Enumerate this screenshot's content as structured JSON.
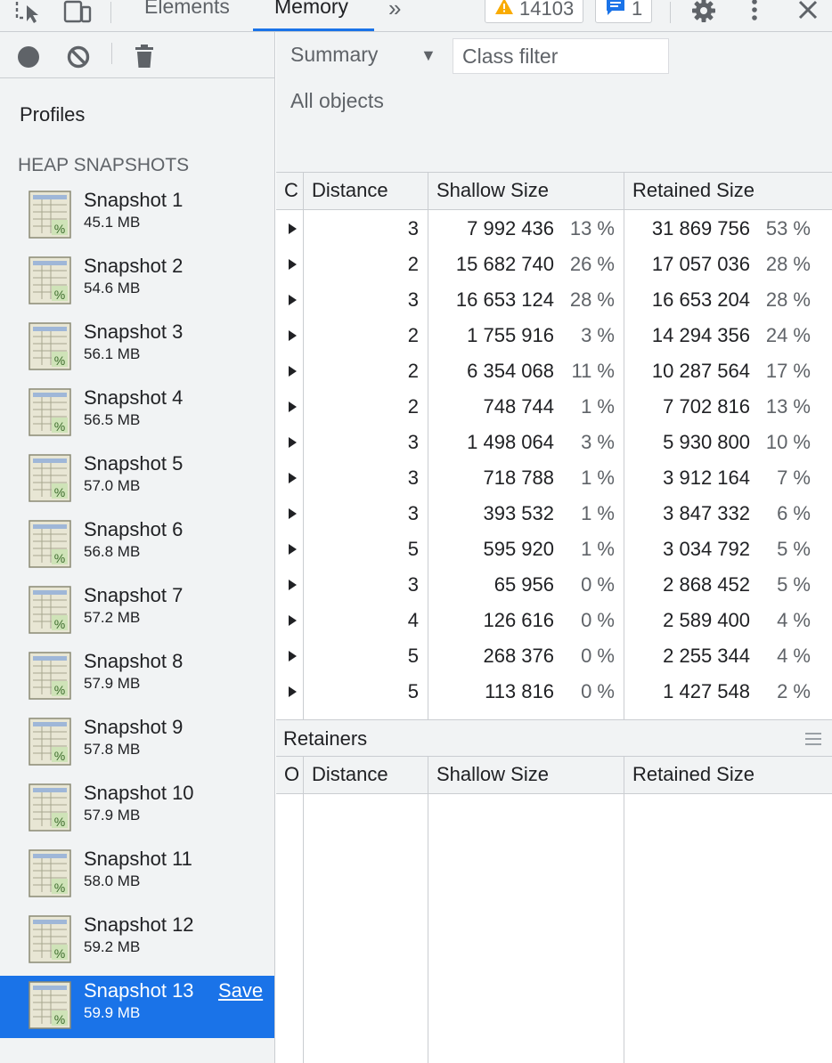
{
  "tabs": {
    "elements": "Elements",
    "memory": "Memory",
    "more": "»"
  },
  "badges": {
    "warnings": "14103",
    "messages": "1"
  },
  "icons": [
    "inspect-icon",
    "device-toolbar-icon",
    "warning-icon",
    "message-icon",
    "gear-icon",
    "kebab-menu-icon",
    "close-icon",
    "record-icon",
    "clear-icon",
    "trash-icon",
    "snapshot-icon",
    "expand-triangle-icon",
    "drag-handle-icon"
  ],
  "colors": {
    "accent": "#1a73e8",
    "panel": "#f1f3f4",
    "warning": "#f9ab00"
  },
  "sidebar": {
    "profiles_title": "Profiles",
    "heap_title": "HEAP SNAPSHOTS",
    "save_label": "Save",
    "snapshots": [
      {
        "name": "Snapshot 1",
        "size": "45.1 MB"
      },
      {
        "name": "Snapshot 2",
        "size": "54.6 MB"
      },
      {
        "name": "Snapshot 3",
        "size": "56.1 MB"
      },
      {
        "name": "Snapshot 4",
        "size": "56.5 MB"
      },
      {
        "name": "Snapshot 5",
        "size": "57.0 MB"
      },
      {
        "name": "Snapshot 6",
        "size": "56.8 MB"
      },
      {
        "name": "Snapshot 7",
        "size": "57.2 MB"
      },
      {
        "name": "Snapshot 8",
        "size": "57.9 MB"
      },
      {
        "name": "Snapshot 9",
        "size": "57.8 MB"
      },
      {
        "name": "Snapshot 10",
        "size": "57.9 MB"
      },
      {
        "name": "Snapshot 11",
        "size": "58.0 MB"
      },
      {
        "name": "Snapshot 12",
        "size": "59.2 MB"
      },
      {
        "name": "Snapshot 13",
        "size": "59.9 MB",
        "selected": true
      }
    ]
  },
  "main": {
    "view_select": "Summary",
    "class_filter_placeholder": "Class filter",
    "all_objects": "All objects",
    "columns": {
      "constructor": "C",
      "distance": "Distance",
      "shallow": "Shallow Size",
      "retained": "Retained Size"
    },
    "rows": [
      {
        "distance": "3",
        "shallow": "7 992 436",
        "shallow_pct": "13 %",
        "retained": "31 869 756",
        "retained_pct": "53 %"
      },
      {
        "distance": "2",
        "shallow": "15 682 740",
        "shallow_pct": "26 %",
        "retained": "17 057 036",
        "retained_pct": "28 %"
      },
      {
        "distance": "3",
        "shallow": "16 653 124",
        "shallow_pct": "28 %",
        "retained": "16 653 204",
        "retained_pct": "28 %"
      },
      {
        "distance": "2",
        "shallow": "1 755 916",
        "shallow_pct": "3 %",
        "retained": "14 294 356",
        "retained_pct": "24 %"
      },
      {
        "distance": "2",
        "shallow": "6 354 068",
        "shallow_pct": "11 %",
        "retained": "10 287 564",
        "retained_pct": "17 %"
      },
      {
        "distance": "2",
        "shallow": "748 744",
        "shallow_pct": "1 %",
        "retained": "7 702 816",
        "retained_pct": "13 %"
      },
      {
        "distance": "3",
        "shallow": "1 498 064",
        "shallow_pct": "3 %",
        "retained": "5 930 800",
        "retained_pct": "10 %"
      },
      {
        "distance": "3",
        "shallow": "718 788",
        "shallow_pct": "1 %",
        "retained": "3 912 164",
        "retained_pct": "7 %"
      },
      {
        "distance": "3",
        "shallow": "393 532",
        "shallow_pct": "1 %",
        "retained": "3 847 332",
        "retained_pct": "6 %"
      },
      {
        "distance": "5",
        "shallow": "595 920",
        "shallow_pct": "1 %",
        "retained": "3 034 792",
        "retained_pct": "5 %"
      },
      {
        "distance": "3",
        "shallow": "65 956",
        "shallow_pct": "0 %",
        "retained": "2 868 452",
        "retained_pct": "5 %"
      },
      {
        "distance": "4",
        "shallow": "126 616",
        "shallow_pct": "0 %",
        "retained": "2 589 400",
        "retained_pct": "4 %"
      },
      {
        "distance": "5",
        "shallow": "268 376",
        "shallow_pct": "0 %",
        "retained": "2 255 344",
        "retained_pct": "4 %"
      },
      {
        "distance": "5",
        "shallow": "113 816",
        "shallow_pct": "0 %",
        "retained": "1 427 548",
        "retained_pct": "2 %"
      }
    ],
    "retainers": {
      "title": "Retainers",
      "columns": {
        "object": "O",
        "distance": "Distance",
        "shallow": "Shallow Size",
        "retained": "Retained Size"
      }
    }
  }
}
